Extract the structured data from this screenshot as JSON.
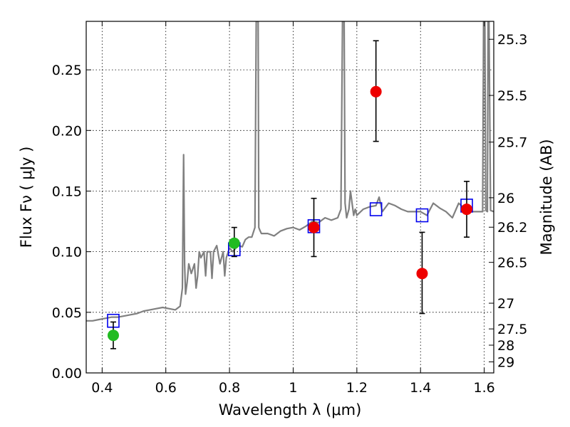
{
  "chart_data": {
    "type": "scatter",
    "title": "",
    "xlabel": "Wavelength  λ (μm)",
    "ylabel": "Flux  Fν  ( μJy )",
    "ylabel_right": "Magnitude (AB)",
    "xlim": [
      0.35,
      1.63
    ],
    "ylim": [
      0.0,
      0.29
    ],
    "grid": true,
    "x_ticks": [
      {
        "value": 0.4,
        "label": "0.4"
      },
      {
        "value": 0.6,
        "label": "0.6"
      },
      {
        "value": 0.8,
        "label": "0.8"
      },
      {
        "value": 1.0,
        "label": "1"
      },
      {
        "value": 1.2,
        "label": "1.2"
      },
      {
        "value": 1.4,
        "label": "1.4"
      },
      {
        "value": 1.6,
        "label": "1.6"
      }
    ],
    "y_ticks": [
      {
        "value": 0.0,
        "label": "0.00"
      },
      {
        "value": 0.05,
        "label": "0.05"
      },
      {
        "value": 0.1,
        "label": "0.10"
      },
      {
        "value": 0.15,
        "label": "0.15"
      },
      {
        "value": 0.2,
        "label": "0.20"
      },
      {
        "value": 0.25,
        "label": "0.25"
      }
    ],
    "right_ticks": [
      {
        "label": "25.3",
        "flux": 0.2752
      },
      {
        "label": "25.5",
        "flux": 0.2289
      },
      {
        "label": "25.7",
        "flux": 0.1904
      },
      {
        "label": "26",
        "flux": 0.1445
      },
      {
        "label": "26.2",
        "flux": 0.1202
      },
      {
        "label": "26.5",
        "flux": 0.0912
      },
      {
        "label": "27",
        "flux": 0.0575
      },
      {
        "label": "27.5",
        "flux": 0.0363
      },
      {
        "label": "28",
        "flux": 0.0229
      },
      {
        "label": "29",
        "flux": 0.0091
      }
    ],
    "series": [
      {
        "type": "line",
        "color": "#808080",
        "x": [
          0.35,
          0.37,
          0.39,
          0.41,
          0.43,
          0.45,
          0.47,
          0.49,
          0.51,
          0.53,
          0.55,
          0.57,
          0.59,
          0.61,
          0.63,
          0.645,
          0.652,
          0.656,
          0.659,
          0.662,
          0.667,
          0.672,
          0.68,
          0.69,
          0.695,
          0.7,
          0.705,
          0.71,
          0.72,
          0.725,
          0.73,
          0.74,
          0.745,
          0.75,
          0.76,
          0.77,
          0.78,
          0.785,
          0.79,
          0.8,
          0.81,
          0.82,
          0.83,
          0.84,
          0.85,
          0.86,
          0.87,
          0.88,
          0.884,
          0.886,
          0.888,
          0.89,
          0.892,
          0.895,
          0.9,
          0.92,
          0.94,
          0.96,
          0.98,
          1.0,
          1.02,
          1.04,
          1.06,
          1.08,
          1.1,
          1.12,
          1.14,
          1.15,
          1.155,
          1.16,
          1.163,
          1.168,
          1.175,
          1.18,
          1.19,
          1.195,
          1.2,
          1.22,
          1.24,
          1.26,
          1.27,
          1.28,
          1.3,
          1.32,
          1.34,
          1.36,
          1.38,
          1.4,
          1.42,
          1.44,
          1.46,
          1.48,
          1.5,
          1.52,
          1.54,
          1.56,
          1.58,
          1.595,
          1.598,
          1.6,
          1.602,
          1.605,
          1.61,
          1.612,
          1.615,
          1.62,
          1.63
        ],
        "y": [
          0.043,
          0.043,
          0.044,
          0.045,
          0.046,
          0.046,
          0.047,
          0.048,
          0.049,
          0.051,
          0.052,
          0.053,
          0.054,
          0.053,
          0.052,
          0.055,
          0.07,
          0.18,
          0.09,
          0.065,
          0.075,
          0.09,
          0.082,
          0.09,
          0.07,
          0.08,
          0.1,
          0.095,
          0.1,
          0.08,
          0.1,
          0.1,
          0.078,
          0.1,
          0.105,
          0.09,
          0.1,
          0.08,
          0.095,
          0.103,
          0.1,
          0.103,
          0.105,
          0.104,
          0.11,
          0.112,
          0.112,
          0.12,
          0.29,
          0.29,
          0.29,
          0.29,
          0.12,
          0.118,
          0.115,
          0.115,
          0.113,
          0.117,
          0.119,
          0.12,
          0.118,
          0.121,
          0.125,
          0.124,
          0.128,
          0.126,
          0.128,
          0.135,
          0.29,
          0.29,
          0.14,
          0.128,
          0.135,
          0.15,
          0.13,
          0.135,
          0.13,
          0.135,
          0.137,
          0.138,
          0.145,
          0.133,
          0.14,
          0.138,
          0.135,
          0.133,
          0.133,
          0.133,
          0.13,
          0.14,
          0.136,
          0.133,
          0.128,
          0.14,
          0.135,
          0.133,
          0.133,
          0.133,
          0.29,
          0.29,
          0.29,
          0.134,
          0.133,
          0.29,
          0.29,
          0.134,
          0.133
        ]
      },
      {
        "type": "scatter",
        "marker": "open-square",
        "color": "#0000ee",
        "x": [
          0.435,
          0.815,
          1.065,
          1.26,
          1.405,
          1.545
        ],
        "y": [
          0.043,
          0.102,
          0.121,
          0.135,
          0.13,
          0.138
        ]
      },
      {
        "type": "scatter",
        "marker": "filled-circle",
        "color": "#22bb22",
        "x": [
          0.435,
          0.815
        ],
        "y": [
          0.031,
          0.107
        ],
        "err_low": [
          0.011,
          0.011
        ],
        "err_high": [
          0.011,
          0.013
        ]
      },
      {
        "type": "scatter",
        "marker": "filled-circle",
        "color": "#ee0000",
        "x": [
          1.065,
          1.26,
          1.405,
          1.545
        ],
        "y": [
          0.12,
          0.232,
          0.082,
          0.135
        ],
        "err_low": [
          0.024,
          0.041,
          0.033,
          0.023
        ],
        "err_high": [
          0.024,
          0.042,
          0.034,
          0.023
        ]
      }
    ]
  }
}
